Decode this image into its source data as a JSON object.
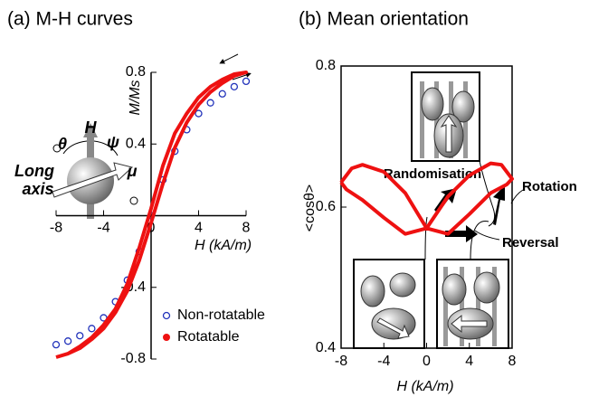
{
  "chart_data": [
    {
      "type": "line",
      "title": "(a) M-H curves",
      "x_label": "H (kA/m)",
      "y_label": "M/Ms",
      "xlim": [
        -8,
        8
      ],
      "xticks": [
        -8,
        -4,
        0,
        4,
        8
      ],
      "ylim": [
        -0.8,
        0.8
      ],
      "yticks": [
        -0.8,
        -0.4,
        0.4,
        0.8
      ],
      "legend": "lower right",
      "inset_labels": {
        "field": "H",
        "theta": "θ",
        "psi": "ψ",
        "moment": "μ",
        "long_axis": [
          "Long",
          "axis"
        ]
      },
      "series": [
        {
          "name": "Non-rotatable",
          "color": "#2233bb",
          "marker": "circle-open",
          "x": [
            -8,
            -7,
            -6,
            -5,
            -4,
            -3,
            -2,
            -1,
            0,
            1,
            2,
            3,
            4,
            5,
            6,
            7,
            8
          ],
          "values": [
            -0.72,
            -0.7,
            -0.67,
            -0.63,
            -0.57,
            -0.48,
            -0.36,
            -0.2,
            0,
            0.2,
            0.36,
            0.48,
            0.57,
            0.63,
            0.68,
            0.72,
            0.75
          ]
        },
        {
          "name": "Rotatable",
          "color": "#ee1111",
          "marker": "line",
          "x": [
            -8,
            -7,
            -6,
            -5,
            -4,
            -3,
            -2,
            -1,
            0,
            1,
            2,
            3,
            4,
            5,
            6,
            7,
            8,
            7,
            6,
            5,
            4,
            3,
            2,
            1,
            0,
            -1,
            -2,
            -3,
            -4,
            -5,
            -6,
            -7,
            -8
          ],
          "values": [
            -0.79,
            -0.77,
            -0.74,
            -0.69,
            -0.63,
            -0.54,
            -0.42,
            -0.25,
            -0.04,
            0.18,
            0.38,
            0.52,
            0.62,
            0.69,
            0.74,
            0.78,
            0.8,
            0.79,
            0.76,
            0.72,
            0.66,
            0.57,
            0.46,
            0.28,
            0.04,
            -0.18,
            -0.38,
            -0.52,
            -0.61,
            -0.68,
            -0.73,
            -0.77,
            -0.79
          ]
        }
      ]
    },
    {
      "type": "line",
      "title": "(b) Mean orientation",
      "x_label": "H (kA/m)",
      "y_label": "<cosθ>",
      "xlim": [
        -8,
        8
      ],
      "xticks": [
        -8,
        -4,
        0,
        4,
        8
      ],
      "ylim": [
        0.4,
        0.8
      ],
      "yticks": [
        0.4,
        0.6,
        0.8
      ],
      "annotations": [
        "Randomisation",
        "Rotation",
        "Reversal"
      ],
      "series": [
        {
          "name": "Rotatable",
          "color": "#ee1111",
          "marker": "line",
          "x": [
            -8,
            -7,
            -6,
            -4,
            -2,
            0,
            2,
            4,
            6,
            7.5,
            8,
            7,
            6,
            4,
            2,
            0,
            -2,
            -4,
            -6,
            -7.5,
            -8
          ],
          "values": [
            0.635,
            0.655,
            0.66,
            0.65,
            0.62,
            0.57,
            0.562,
            0.59,
            0.62,
            0.632,
            0.64,
            0.66,
            0.662,
            0.645,
            0.615,
            0.57,
            0.562,
            0.585,
            0.61,
            0.625,
            0.635
          ]
        }
      ]
    }
  ]
}
